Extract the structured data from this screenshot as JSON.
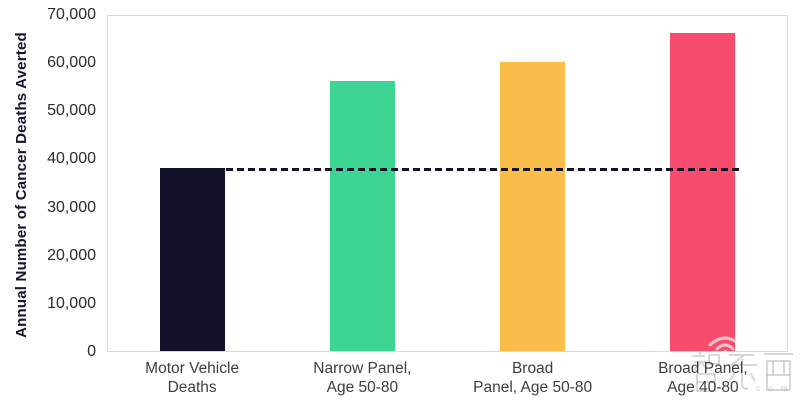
{
  "chart_data": {
    "type": "bar",
    "categories": [
      "Motor Vehicle\nDeaths",
      "Narrow Panel,\nAge 50-80",
      "Broad\nPanel, Age 50-80",
      "Broad Panel,\nAge 40-80"
    ],
    "values": [
      38000,
      56000,
      60000,
      66000
    ],
    "colors": [
      "#12122a",
      "#3cd594",
      "#fabd4a",
      "#f64d6f"
    ],
    "title": "",
    "xlabel": "",
    "ylabel": "Annual Number of Cancer Deaths Averted",
    "ylim": [
      0,
      70000
    ],
    "yticks": [
      0,
      10000,
      20000,
      30000,
      40000,
      50000,
      60000,
      70000
    ],
    "ytick_labels": [
      "0",
      "10,000",
      "20,000",
      "30,000",
      "40,000",
      "50,000",
      "60,000",
      "70,000"
    ],
    "grid": false,
    "legend": null,
    "plot_border_color": "#d9d9d9",
    "reference_line": {
      "value": 38000,
      "style": "dashed",
      "color": "#12122a"
    }
  },
  "watermark": {
    "brand_text": "智东西",
    "domain_text": "c o m",
    "icon": "wifi-signal-icon"
  }
}
